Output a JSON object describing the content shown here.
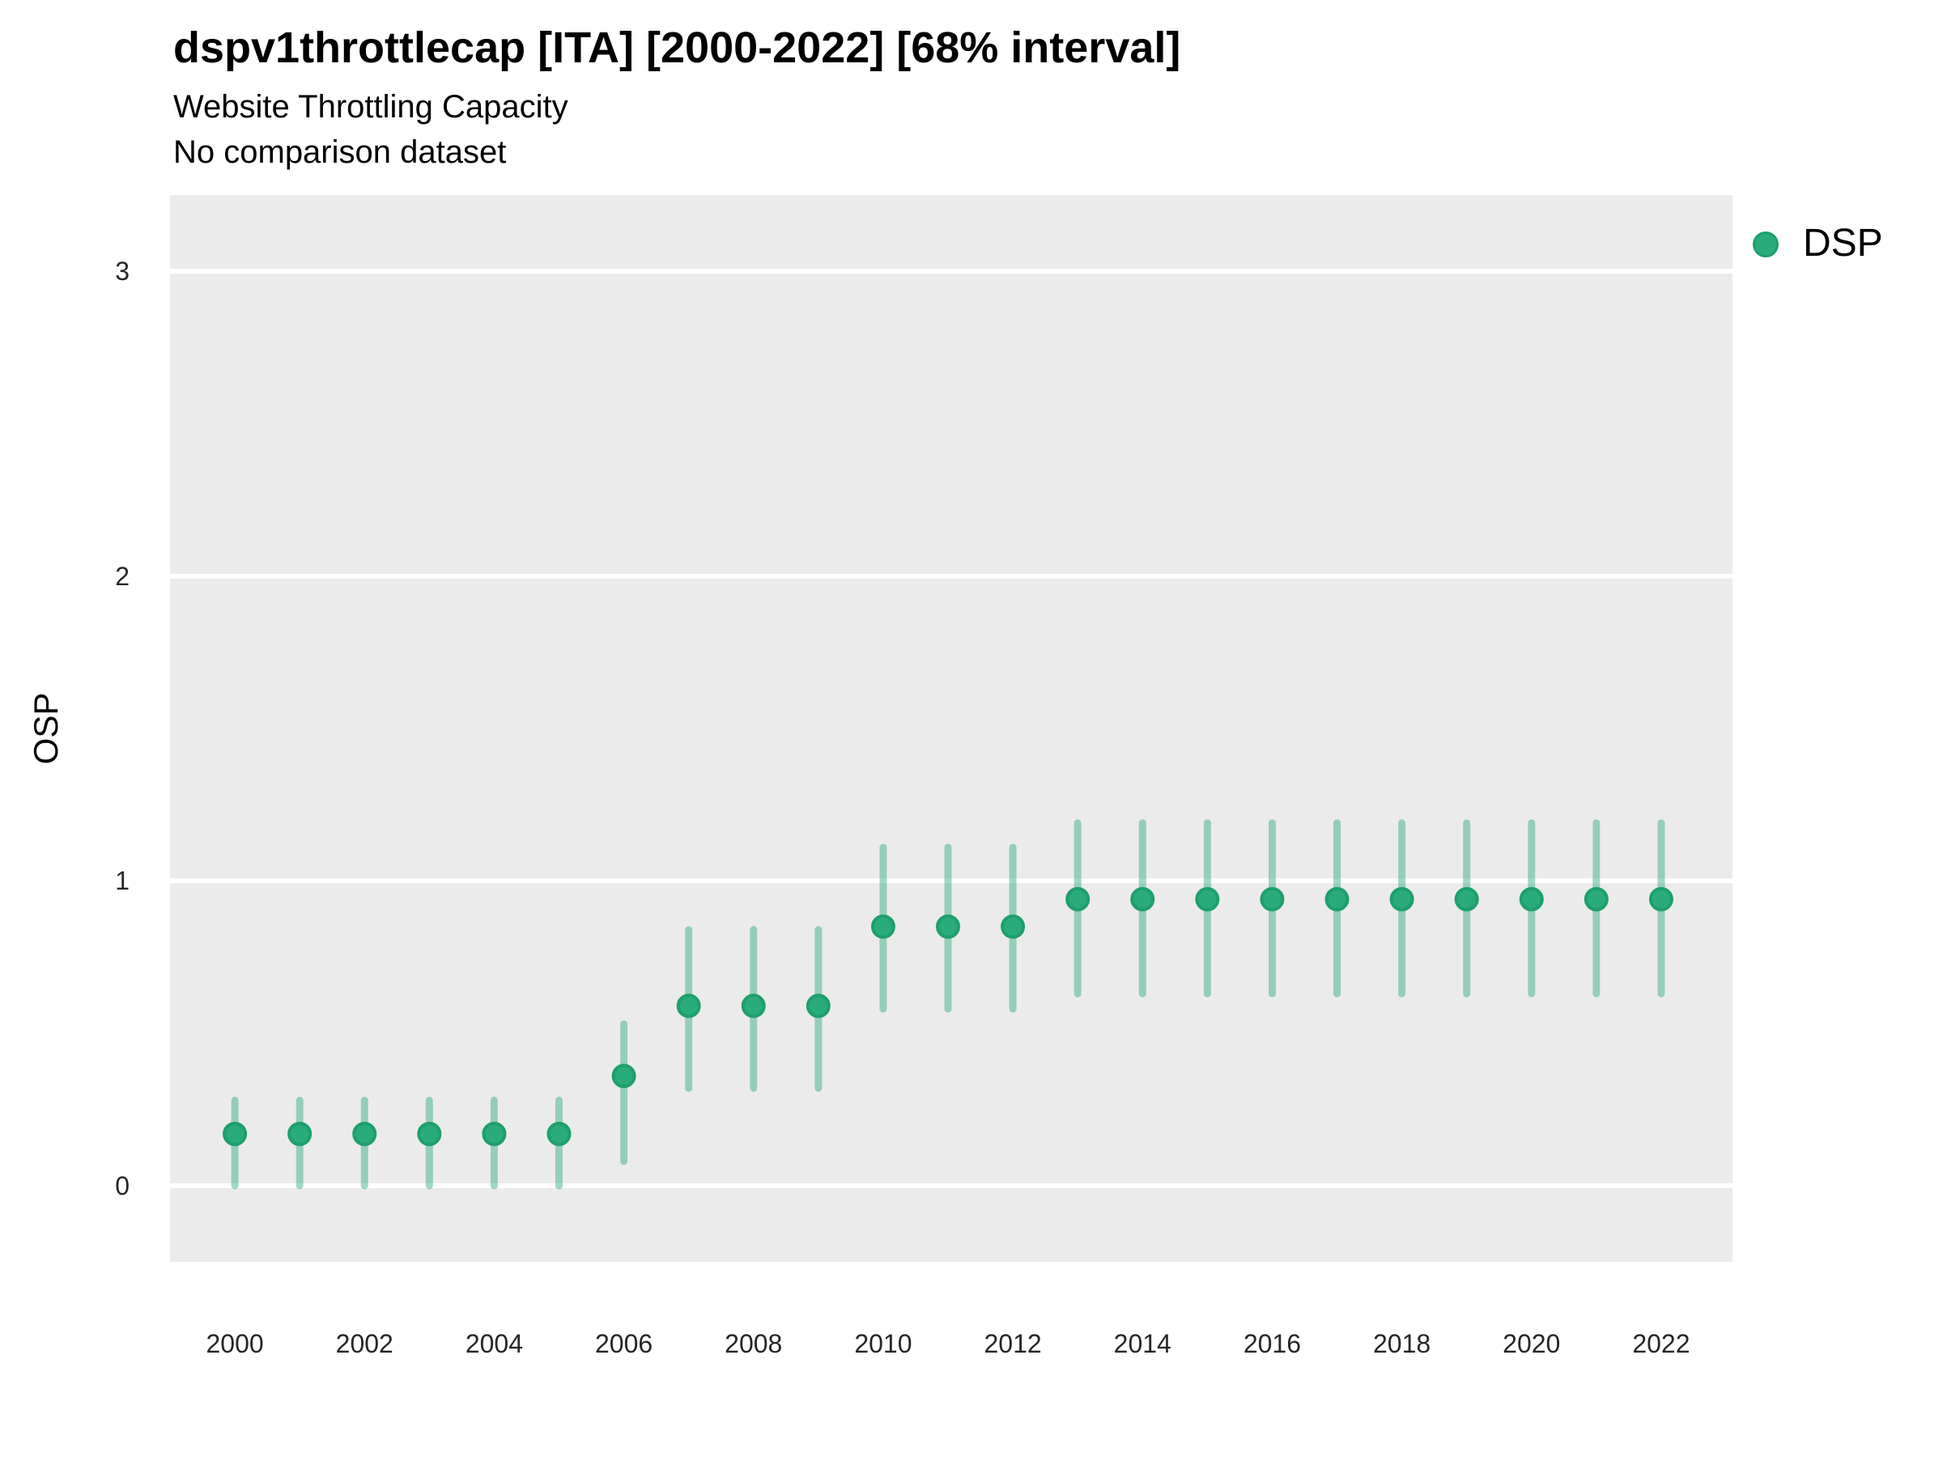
{
  "header": {
    "title": "dspv1throttlecap [ITA] [2000-2022] [68% interval]",
    "subtitle_line1": "Website Throttling Capacity",
    "subtitle_line2": "No comparison dataset"
  },
  "legend": {
    "position": "right",
    "items": [
      {
        "label": "DSP",
        "marker": "circle-icon",
        "color": "#2AAB7C"
      }
    ]
  },
  "colors": {
    "panel_background": "#EBEBEB",
    "gridline": "#FFFFFF",
    "point_fill": "#2AAB7C",
    "point_stroke": "#1E9F6B",
    "interval_bar": "rgba(42,171,124,0.45)",
    "tick_text": "#262626",
    "title_text": "#000000"
  },
  "chart_data": {
    "type": "scatter",
    "title": "dspv1throttlecap [ITA] [2000-2022] [68% interval]",
    "subtitle": "Website Throttling Capacity",
    "caption": "No comparison dataset",
    "xlabel": "",
    "ylabel": "OSP",
    "interval_level": "68%",
    "legend_position": "right",
    "grid": "horizontal-major-only",
    "x_ticks": [
      2000,
      2002,
      2004,
      2006,
      2008,
      2010,
      2012,
      2014,
      2016,
      2018,
      2020,
      2022
    ],
    "y_ticks": [
      0,
      1,
      2,
      3
    ],
    "xlim": [
      1999.0,
      2023.1
    ],
    "ylim": [
      -0.25,
      3.25
    ],
    "series": [
      {
        "name": "DSP",
        "color": "#2AAB7C",
        "x": [
          2000,
          2001,
          2002,
          2003,
          2004,
          2005,
          2006,
          2007,
          2008,
          2009,
          2010,
          2011,
          2012,
          2013,
          2014,
          2015,
          2016,
          2017,
          2018,
          2019,
          2020,
          2021,
          2022
        ],
        "values": [
          0.17,
          0.17,
          0.17,
          0.17,
          0.17,
          0.17,
          0.36,
          0.59,
          0.59,
          0.59,
          0.85,
          0.85,
          0.85,
          0.94,
          0.94,
          0.94,
          0.94,
          0.94,
          0.94,
          0.94,
          0.94,
          0.94,
          0.94
        ],
        "interval_low": [
          0.0,
          0.0,
          0.0,
          0.0,
          0.0,
          0.0,
          0.08,
          0.32,
          0.32,
          0.32,
          0.58,
          0.58,
          0.58,
          0.63,
          0.63,
          0.63,
          0.63,
          0.63,
          0.63,
          0.63,
          0.63,
          0.63,
          0.63
        ],
        "interval_high": [
          0.28,
          0.28,
          0.28,
          0.28,
          0.28,
          0.28,
          0.53,
          0.84,
          0.84,
          0.84,
          1.11,
          1.11,
          1.11,
          1.19,
          1.19,
          1.19,
          1.19,
          1.19,
          1.19,
          1.19,
          1.19,
          1.19,
          1.19
        ]
      }
    ]
  }
}
